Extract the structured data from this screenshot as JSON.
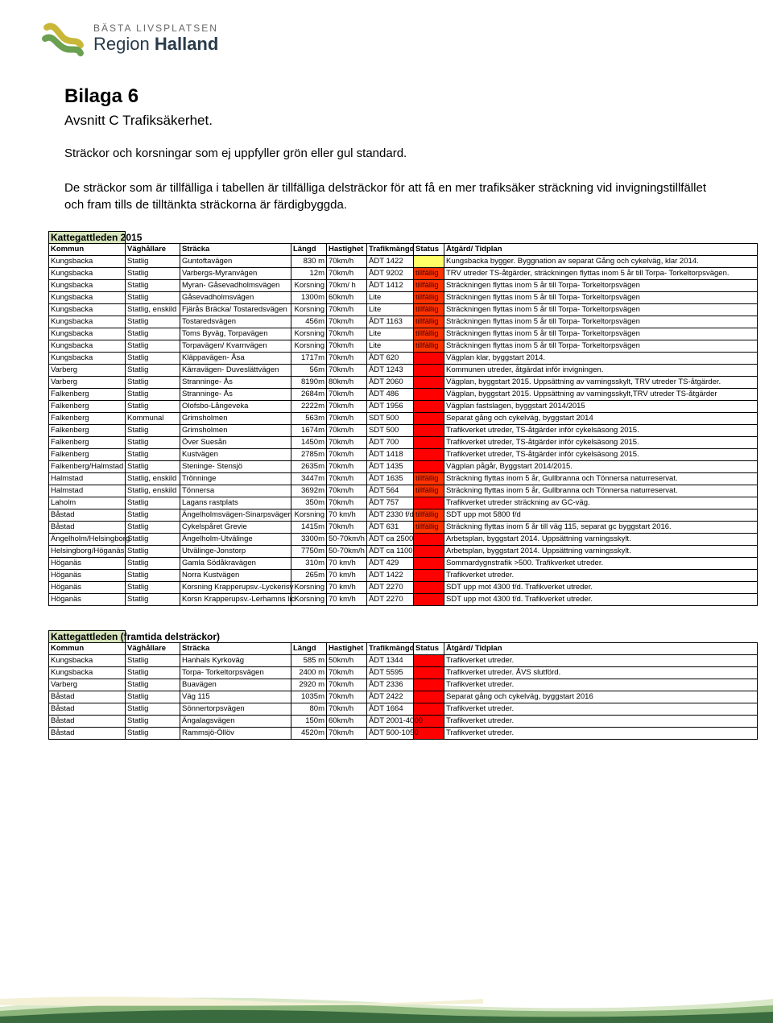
{
  "logo": {
    "tagline": "BÄSTA LIVSPLATSEN",
    "region_prefix": "Region",
    "region_name": "Halland",
    "icon_color_yellow": "#c9b73a",
    "icon_color_green": "#6aa050"
  },
  "title": "Bilaga 6",
  "subtitle": "Avsnitt C Trafiksäkerhet.",
  "body1": "Sträckor och korsningar som ej uppfyller grön eller gul standard.",
  "body2": "De sträckor som är tillfälliga i tabellen är tillfälliga delsträckor för att få en mer trafiksäker sträckning vid invigningstillfället och fram tills de tilltänkta sträckorna är färdigbyggda.",
  "header_bg": "#d7e4bd",
  "status_colors": {
    "tillfallig": "#ff3300",
    "red": "#ff0000",
    "yellow": "#ffff66"
  },
  "columns": [
    "Kommun",
    "Väghållare",
    "Sträcka",
    "Längd",
    "Hastighet",
    "Trafikmängd",
    "Status",
    "Åtgärd/ Tidplan"
  ],
  "table1": {
    "title": "Kattegattleden 2015",
    "rows": [
      {
        "k": "Kungsbacka",
        "v": "Statlig",
        "s": "Guntoftavägen",
        "l": "830 m",
        "h": "70km/h",
        "t": "ÅDT 1422",
        "st": "",
        "sc": "#ffff66",
        "a": "Kungsbacka bygger. Byggnation av separat Gång och cykelväg, klar 2014."
      },
      {
        "k": "Kungsbacka",
        "v": "Statlig",
        "s": "Varbergs-Myranvägen",
        "l": "12m",
        "h": "70km/h",
        "t": "ÅDT 9202",
        "st": "tillfällig",
        "sc": "#ff3300",
        "a": "TRV utreder TS-åtgärder, sträckningen flyttas inom 5 år till Torpa- Torkeltorpsvägen."
      },
      {
        "k": "Kungsbacka",
        "v": "Statlig",
        "s": "Myran- Gåsevadholmsvägen",
        "l": "Korsning",
        "h": "70km/ h",
        "t": "ÅDT 1412",
        "st": "tillfällig",
        "sc": "#ff3300",
        "a": "Sträckningen flyttas inom 5 år till Torpa- Torkeltorpsvägen"
      },
      {
        "k": "Kungsbacka",
        "v": "Statlig",
        "s": "Gåsevadholmsvägen",
        "l": "1300m",
        "h": "60km/h",
        "t": "Lite",
        "st": "tillfällig",
        "sc": "#ff3300",
        "a": "Sträckningen flyttas inom 5 år till Torpa- Torkeltorpsvägen"
      },
      {
        "k": "Kungsbacka",
        "v": "Statlig, enskild",
        "s": "Fjärås Bräcka/ Tostaredsvägen",
        "l": "Korsning",
        "h": "70km/h",
        "t": "Lite",
        "st": "tillfällig",
        "sc": "#ff3300",
        "a": "Sträckningen flyttas inom 5 år till Torpa- Torkeltorpsvägen"
      },
      {
        "k": "Kungsbacka",
        "v": "Statlig",
        "s": "Tostaredsvägen",
        "l": "456m",
        "h": "70km/h",
        "t": "ÅDT 1163",
        "st": "tillfällig",
        "sc": "#ff3300",
        "a": "Sträckningen flyttas inom 5 år till Torpa- Torkeltorpsvägen"
      },
      {
        "k": "Kungsbacka",
        "v": "Statlig",
        "s": "Toms Byväg, Torpavägen",
        "l": "Korsning",
        "h": "70km/h",
        "t": "Lite",
        "st": "tillfällig",
        "sc": "#ff3300",
        "a": "Sträckningen flyttas inom 5 år till Torpa- Torkeltorpsvägen"
      },
      {
        "k": "Kungsbacka",
        "v": "Statlig",
        "s": "Torpavägen/ Kvarnvägen",
        "l": "Korsning",
        "h": "70km/h",
        "t": "Lite",
        "st": "tillfällig",
        "sc": "#ff3300",
        "a": "Sträckningen flyttas inom 5 år till Torpa- Torkeltorpsvägen"
      },
      {
        "k": "Kungsbacka",
        "v": "Statlig",
        "s": "Kläppavägen- Åsa",
        "l": "1717m",
        "h": "70km/h",
        "t": "ÅDT 620",
        "st": "",
        "sc": "#ff0000",
        "a": "Vägplan klar, byggstart 2014."
      },
      {
        "k": "Varberg",
        "v": "Statlig",
        "s": "Kärravägen- Duveslättvägen",
        "l": "56m",
        "h": "70km/h",
        "t": "ÅDT 1243",
        "st": "",
        "sc": "#ff0000",
        "a": "Kommunen utreder, åtgärdat inför invigningen."
      },
      {
        "k": "Varberg",
        "v": "Statlig",
        "s": "Stranninge- Ås",
        "l": "8190m",
        "h": "80km/h",
        "t": "ÅDT 2060",
        "st": "",
        "sc": "#ff0000",
        "a": "Vägplan, byggstart 2015. Uppsättning av varningsskylt, TRV utreder TS-åtgärder."
      },
      {
        "k": "Falkenberg",
        "v": "Statlig",
        "s": "Stranninge- Ås",
        "l": "2684m",
        "h": "70km/h",
        "t": "ÅDT 486",
        "st": "",
        "sc": "#ff0000",
        "a": "Vägplan, byggstart 2015. Uppsättning av varningsskylt,TRV utreder TS-åtgärder"
      },
      {
        "k": "Falkenberg",
        "v": "Statlig",
        "s": "Olofsbo-Långeveka",
        "l": "2222m",
        "h": "70km/h",
        "t": "ÅDT 1956",
        "st": "",
        "sc": "#ff0000",
        "a": "Vägplan fastslagen, byggstart 2014/2015"
      },
      {
        "k": "Falkenberg",
        "v": "Kommunal",
        "s": "Grimsholmen",
        "l": "563m",
        "h": "70km/h",
        "t": "SDT 500",
        "st": "",
        "sc": "#ff0000",
        "a": "Separat gång och cykelväg, byggstart 2014"
      },
      {
        "k": "Falkenberg",
        "v": "Statlig",
        "s": "Grimsholmen",
        "l": "1674m",
        "h": "70km/h",
        "t": "SDT 500",
        "st": "",
        "sc": "#ff0000",
        "a": "Trafikverket utreder, TS-åtgärder inför cykelsäsong 2015."
      },
      {
        "k": "Falkenberg",
        "v": "Statlig",
        "s": "Över Suesån",
        "l": "1450m",
        "h": "70km/h",
        "t": "ÅDT 700",
        "st": "",
        "sc": "#ff0000",
        "a": "Trafikverket utreder, TS-åtgärder inför cykelsäsong 2015."
      },
      {
        "k": "Falkenberg",
        "v": "Statlig",
        "s": "Kustvägen",
        "l": "2785m",
        "h": "70km/h",
        "t": "ÅDT 1418",
        "st": "",
        "sc": "#ff0000",
        "a": "Trafikverket utreder, TS-åtgärder inför cykelsäsong 2015."
      },
      {
        "k": "Falkenberg/Halmstad",
        "v": "Statlig",
        "s": "Steninge- Stensjö",
        "l": "2635m",
        "h": "70km/h",
        "t": "ÅDT 1435",
        "st": "",
        "sc": "#ff0000",
        "a": "Vägplan pågår, Byggstart 2014/2015."
      },
      {
        "k": "Halmstad",
        "v": "Statlig, enskild",
        "s": "Trönninge",
        "l": "3447m",
        "h": "70km/h",
        "t": "ÅDT 1635",
        "st": "tillfällig",
        "sc": "#ff3300",
        "a": "Sträckning flyttas inom 5 år, Gullbranna och Tönnersa naturreservat."
      },
      {
        "k": "Halmstad",
        "v": "Statlig, enskild",
        "s": "Tönnersa",
        "l": "3692m",
        "h": "70km/h",
        "t": "ÅDT 564",
        "st": "tillfällig",
        "sc": "#ff3300",
        "a": "Sträckning flyttas inom 5 år, Gullbranna och Tönnersa naturreservat."
      },
      {
        "k": "Laholm",
        "v": "Statlig",
        "s": "Lagans rastplats",
        "l": "350m",
        "h": "70km/h",
        "t": "ÅDT 757",
        "st": "",
        "sc": "#ff0000",
        "a": "Trafikverket utreder sträckning av GC-väg."
      },
      {
        "k": "Båstad",
        "v": "Statlig",
        "s": "Ängelholmsvägen-Sinarpsvägen",
        "l": "Korsning",
        "h": "70 km/h",
        "t": "ÅDT 2330 f/d",
        "st": "tillfällig",
        "sc": "#ff3300",
        "a": "SDT upp mot 5800 f/d"
      },
      {
        "k": "Båstad",
        "v": "Statlig",
        "s": "Cykelspåret Grevie",
        "l": "1415m",
        "h": "70km/h",
        "t": "ÅDT 631",
        "st": "tillfällig",
        "sc": "#ff3300",
        "a": "Sträckning flyttas inom  5 år till väg 115, separat gc byggstart 2016."
      },
      {
        "k": "Ängelholm/Helsingborg",
        "v": "Statlig",
        "s": "Ängelholm-Utvälinge",
        "l": "3300m",
        "h": "50-70km/h",
        "t": "ÅDT ca 2500",
        "st": "",
        "sc": "#ff0000",
        "a": "Arbetsplan, byggstart 2014. Uppsättning varningsskylt."
      },
      {
        "k": "Helsingborg/Höganäs",
        "v": "Statlig",
        "s": "Utvälinge-Jonstorp",
        "l": "7750m",
        "h": "50-70km/h",
        "t": "ÅDT ca 1100",
        "st": "",
        "sc": "#ff0000",
        "a": "Arbetsplan, byggstart 2014. Uppsättning varningsskylt."
      },
      {
        "k": "Höganäs",
        "v": "Statlig",
        "s": "Gamla Södåkravägen",
        "l": "310m",
        "h": "70 km/h",
        "t": "ÅDT 429",
        "st": "",
        "sc": "#ff0000",
        "a": "Sommardygnstrafik >500. Trafikverket utreder."
      },
      {
        "k": "Höganäs",
        "v": "Statlig",
        "s": "Norra Kustvägen",
        "l": "265m",
        "h": "70 km/h",
        "t": "ÅDT 1422",
        "st": "",
        "sc": "#ff0000",
        "a": "Trafikverket utreder."
      },
      {
        "k": "Höganäs",
        "v": "Statlig",
        "s": "Korsning Krapperupsv.-Lyckerisv",
        "l": "Korsning",
        "h": "70 km/h",
        "t": "ÅDT 2270",
        "st": "",
        "sc": "#ff0000",
        "a": "SDT upp mot 4300 f/d. Trafikverket utreder."
      },
      {
        "k": "Höganäs",
        "v": "Statlig",
        "s": "Korsn Krapperupsv.-Lerhamns lic",
        "l": "Korsning",
        "h": "70 km/h",
        "t": "ÅDT 2270",
        "st": "",
        "sc": "#ff0000",
        "a": "SDT upp mot 4300 f/d. Trafikverket utreder."
      }
    ]
  },
  "table2": {
    "title": "Kattegattleden (framtida delsträckor)",
    "rows": [
      {
        "k": "Kungsbacka",
        "v": "Statlig",
        "s": "Hanhals Kyrkoväg",
        "l": "585 m",
        "h": "50km/h",
        "t": "ÅDT 1344",
        "st": "",
        "sc": "#ff0000",
        "a": "Trafikverket utreder."
      },
      {
        "k": "Kungsbacka",
        "v": "Statlig",
        "s": "Torpa- Torkeltorpsvägen",
        "l": "2400 m",
        "h": "70km/h",
        "t": "ÅDT 5595",
        "st": "",
        "sc": "#ff0000",
        "a": "Trafikverket utreder. ÅVS slutförd."
      },
      {
        "k": "Varberg",
        "v": "Statlig",
        "s": "Buavägen",
        "l": "2920 m",
        "h": "70km/h",
        "t": "ÅDT 2336",
        "st": "",
        "sc": "#ff0000",
        "a": "Trafikverket utreder."
      },
      {
        "k": "Båstad",
        "v": "Statlig",
        "s": "Väg 115",
        "l": "1035m",
        "h": "70km/h",
        "t": "ÅDT 2422",
        "st": "",
        "sc": "#ff0000",
        "a": "Separat gång och cykelväg, byggstart 2016"
      },
      {
        "k": "Båstad",
        "v": "Statlig",
        "s": "Sönnertorpsvägen",
        "l": "80m",
        "h": "70km/h",
        "t": "ÅDT 1664",
        "st": "",
        "sc": "#ff0000",
        "a": "Trafikverket utreder."
      },
      {
        "k": "Båstad",
        "v": "Statlig",
        "s": "Ängalagsvägen",
        "l": "150m",
        "h": "60km/h",
        "t": "ÅDT 2001-4000",
        "st": "",
        "sc": "#ff0000",
        "a": "Trafikverket utreder."
      },
      {
        "k": "Båstad",
        "v": "Statlig",
        "s": "Rammsjö-Öllöv",
        "l": "4520m",
        "h": "70km/h",
        "t": "ÅDT 500-1050",
        "st": "",
        "sc": "#ff0000",
        "a": "Trafikverket utreder."
      }
    ]
  },
  "footer_colors": {
    "top": "#3a6b3e",
    "mid": "#8db67c",
    "light": "#d9e8c9",
    "cream": "#f3f0d6"
  }
}
